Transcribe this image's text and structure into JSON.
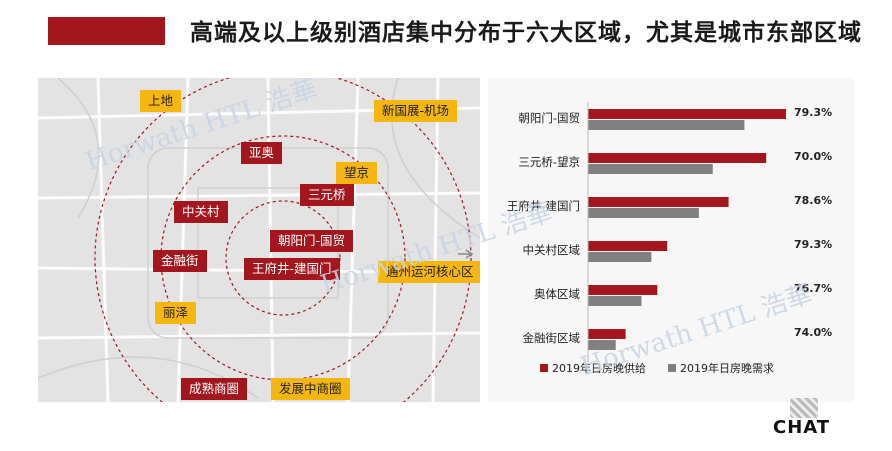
{
  "header": {
    "title": "高端及以上级别酒店集中分布于六大区域，尤其是城市东部区域"
  },
  "map": {
    "red_tags": [
      "亚奥",
      "三元桥",
      "中关村",
      "朝阳门-国贸",
      "金融街",
      "王府井-建国门",
      "成熟商圈"
    ],
    "yellow_tags": [
      "上地",
      "新国展-机场",
      "望京",
      "通州运河核心区",
      "丽泽",
      "发展中商圈"
    ]
  },
  "watermark": {
    "text": "Horwath HTL 浩華"
  },
  "footer": {
    "brand": "CHAT"
  },
  "colors": {
    "accent_red": "#a3161e",
    "tag_yellow": "#f5b70f",
    "demand_gray": "#808080"
  },
  "chart_data": {
    "type": "bar",
    "orientation": "horizontal",
    "categories": [
      "朝阳门-国贸",
      "三元桥-望京",
      "王府井-建国门",
      "中关村区域",
      "奥体区域",
      "金融街区域"
    ],
    "series": [
      {
        "name": "2019年日房晚供给",
        "values": [
          100,
          90,
          71,
          40,
          35,
          19
        ]
      },
      {
        "name": "2019年日房晚需求",
        "values": [
          79,
          63,
          56,
          32,
          27,
          14
        ]
      }
    ],
    "data_labels": [
      "79.3%",
      "70.0%",
      "78.6%",
      "79.3%",
      "76.7%",
      "74.0%"
    ],
    "legend_position": "bottom",
    "xlim": [
      0,
      100
    ],
    "grid": false,
    "title": "",
    "xlabel": "",
    "ylabel": ""
  }
}
